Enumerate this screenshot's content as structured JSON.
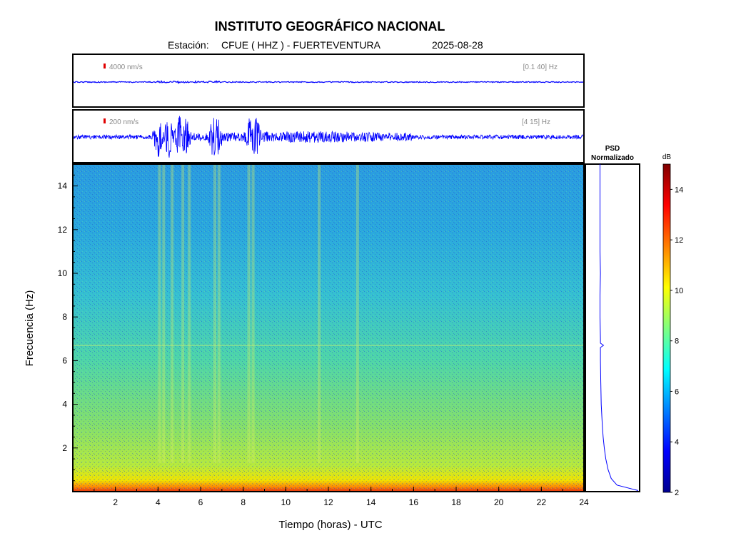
{
  "header": {
    "title": "INSTITUTO GEOGRÁFICO NACIONAL",
    "station_prefix": "Estación:",
    "station": "CFUE ( HHZ ) - FUERTEVENTURA",
    "date": "2025-08-28"
  },
  "chart_data": [
    {
      "type": "line",
      "name": "waveform-broadband",
      "scale_label": "4000 nm/s",
      "band_label": "[0.1 40] Hz",
      "x_range_hours": [
        0,
        24
      ]
    },
    {
      "type": "line",
      "name": "waveform-filtered",
      "scale_label": "200 nm/s",
      "band_label": "[4 15] Hz",
      "x_range_hours": [
        0,
        24
      ],
      "bursts_hours": [
        4.0,
        4.5,
        5.0,
        5.3,
        6.6,
        6.8,
        8.3,
        8.6
      ]
    },
    {
      "type": "heatmap",
      "xlabel": "Tiempo (horas) - UTC",
      "ylabel": "Frecuencia  (Hz)",
      "xlim": [
        0,
        24
      ],
      "ylim": [
        0,
        15
      ],
      "x_ticks": [
        2,
        4,
        6,
        8,
        10,
        12,
        14,
        16,
        18,
        20,
        22,
        24
      ],
      "y_ticks": [
        2,
        4,
        6,
        8,
        10,
        12,
        14
      ],
      "vertical_bands_hours": [
        4.0,
        4.2,
        4.6,
        5.1,
        5.4,
        6.6,
        6.8,
        8.2,
        8.4,
        11.5,
        13.3
      ],
      "horizontal_line_hz": 6.7
    },
    {
      "type": "line",
      "title": "PSD\nNormalizado",
      "title_line1": "PSD",
      "title_line2": "Normalizado",
      "freq_hz": [
        0.05,
        0.3,
        0.6,
        1,
        1.5,
        2,
        2.5,
        3,
        4,
        5,
        6,
        6.6,
        6.7,
        6.8,
        7,
        8,
        9,
        10,
        11,
        12,
        13,
        14,
        15
      ],
      "value": [
        1.0,
        0.45,
        0.3,
        0.22,
        0.16,
        0.12,
        0.09,
        0.07,
        0.04,
        0.03,
        0.02,
        0.02,
        0.1,
        0.02,
        0.02,
        0.01,
        0.01,
        0.02,
        0.01,
        0.01,
        0.01,
        0.01,
        0.01
      ]
    },
    {
      "type": "colorbar",
      "label": "dB",
      "range": [
        2,
        15
      ],
      "ticks": [
        2,
        4,
        6,
        8,
        10,
        12,
        14
      ]
    }
  ]
}
